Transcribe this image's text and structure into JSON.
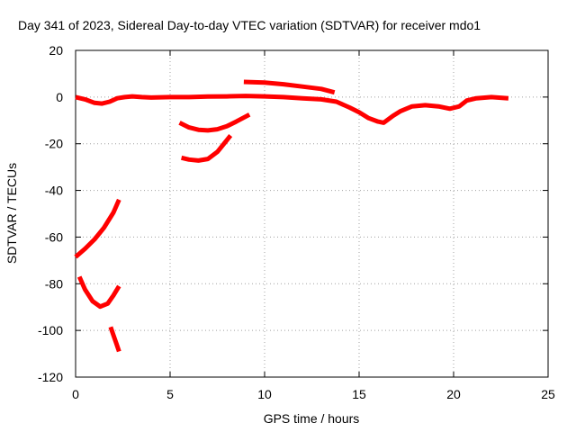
{
  "chart_data": {
    "type": "scatter",
    "title": "Day 341 of 2023, Sidereal Day-to-day VTEC variation (SDTVAR) for receiver mdo1",
    "xlabel": "GPS time / hours",
    "ylabel": "SDTVAR / TECUs",
    "xlim": [
      0,
      25
    ],
    "ylim": [
      -120,
      20
    ],
    "xticks": [
      0,
      5,
      10,
      15,
      20,
      25
    ],
    "yticks": [
      -120,
      -100,
      -80,
      -60,
      -40,
      -20,
      0,
      20
    ],
    "grid": true,
    "color": "#ff0000",
    "series": [
      {
        "name": "main",
        "x": [
          0,
          0.5,
          1.0,
          1.4,
          1.8,
          2.2,
          2.6,
          3.0,
          3.5,
          4,
          5,
          6,
          7,
          8,
          9,
          10,
          11,
          12,
          13,
          13.8,
          14.5,
          15.0,
          15.5,
          16.0,
          16.3,
          16.8,
          17.2,
          17.8,
          18.5,
          19.2,
          19.8,
          20.3,
          20.7,
          21.2,
          22,
          22.9
        ],
        "y": [
          0,
          -1,
          -2.5,
          -2.8,
          -2,
          -0.5,
          0,
          0.3,
          0,
          -0.2,
          0,
          0,
          0.2,
          0.3,
          0.5,
          0.3,
          0,
          -0.5,
          -1,
          -2,
          -4.5,
          -6.5,
          -9,
          -10.5,
          -11,
          -8,
          -6,
          -4,
          -3.5,
          -4,
          -5,
          -4,
          -1.5,
          -0.5,
          0,
          -0.5
        ]
      },
      {
        "name": "upper-arc",
        "x": [
          8.9,
          10,
          11,
          12,
          13,
          13.7
        ],
        "y": [
          6.5,
          6.2,
          5.5,
          4.5,
          3.5,
          2.0
        ]
      },
      {
        "name": "arc-1",
        "x": [
          5.5,
          6,
          6.5,
          7,
          7.5,
          8,
          8.5,
          9.2
        ],
        "y": [
          -11,
          -13,
          -14,
          -14.3,
          -13.8,
          -12.5,
          -10.5,
          -7.5
        ]
      },
      {
        "name": "arc-2",
        "x": [
          5.6,
          6,
          6.5,
          7,
          7.5,
          8.2
        ],
        "y": [
          -26,
          -26.8,
          -27.2,
          -26.5,
          -23.5,
          -16.5
        ]
      },
      {
        "name": "arc-3",
        "x": [
          0,
          0.5,
          1.0,
          1.5,
          2.0,
          2.3
        ],
        "y": [
          -68.5,
          -65,
          -61,
          -56,
          -49.5,
          -44
        ]
      },
      {
        "name": "arc-4",
        "x": [
          0.2,
          0.5,
          0.9,
          1.3,
          1.7,
          2.0,
          2.3
        ],
        "y": [
          -77,
          -82.5,
          -87.5,
          -89.8,
          -88.5,
          -85,
          -81
        ]
      },
      {
        "name": "arc-5",
        "x": [
          1.85,
          2.0,
          2.15,
          2.3
        ],
        "y": [
          -98.5,
          -102,
          -105.5,
          -109
        ]
      }
    ]
  }
}
